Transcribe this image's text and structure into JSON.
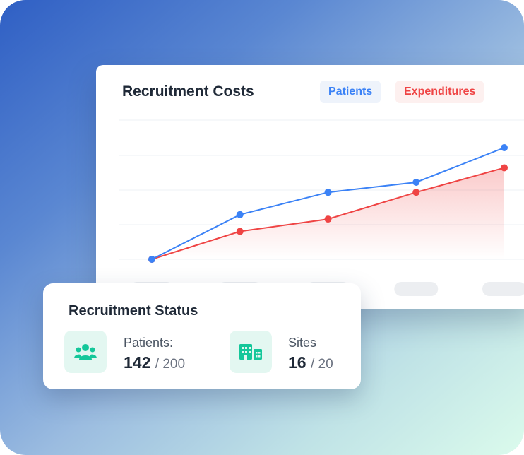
{
  "chart_card": {
    "title": "Recruitment Costs",
    "legend": [
      {
        "label": "Patients",
        "color": "#3b82f6"
      },
      {
        "label": "Expenditures",
        "color": "#ef4444"
      }
    ]
  },
  "chart_data": {
    "type": "line",
    "title": "Recruitment Costs",
    "x": [
      1,
      2,
      3,
      4,
      5
    ],
    "ylim": [
      0,
      100
    ],
    "grid": true,
    "legend_position": "top-right",
    "series": [
      {
        "name": "Patients",
        "color": "#3b82f6",
        "values": [
          0,
          40,
          60,
          69,
          100
        ]
      },
      {
        "name": "Expenditures",
        "color": "#ef4444",
        "values": [
          0,
          25,
          36,
          60,
          82
        ],
        "fill": "area"
      }
    ]
  },
  "status_card": {
    "title": "Recruitment Status",
    "patients": {
      "label": "Patients:",
      "value": "142",
      "total": "/ 200",
      "icon": "people-icon"
    },
    "sites": {
      "label": "Sites",
      "value": "16",
      "total": "/ 20",
      "icon": "buildings-icon"
    }
  },
  "colors": {
    "accent_teal": "#14c79a",
    "patients_blue": "#3b82f6",
    "expenditures_red": "#ef4444"
  }
}
